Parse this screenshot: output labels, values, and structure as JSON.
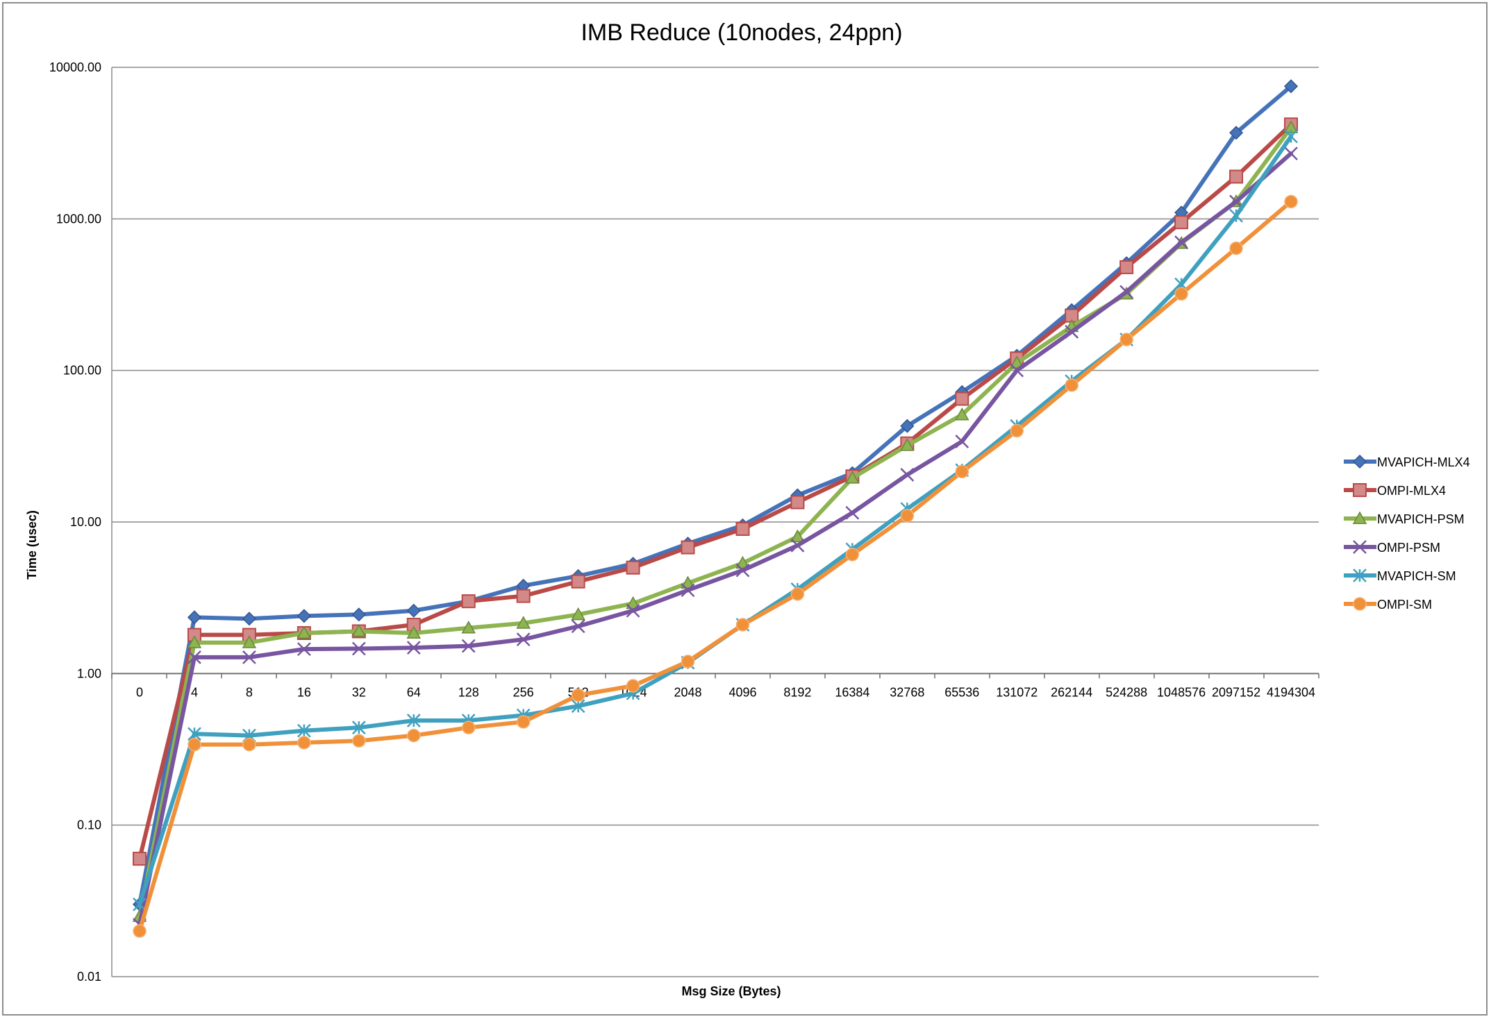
{
  "chart_data": {
    "type": "line",
    "title": "IMB Reduce (10nodes, 24ppn)",
    "xlabel": "Msg Size (Bytes)",
    "ylabel": "Time (usec)",
    "y_scale": "log",
    "ylim": [
      0.01,
      10000
    ],
    "y_ticks": [
      "0.01",
      "0.10",
      "1.00",
      "10.00",
      "100.00",
      "1000.00",
      "10000.00"
    ],
    "grid": true,
    "legend_position": "right",
    "categories": [
      "0",
      "4",
      "8",
      "16",
      "32",
      "64",
      "128",
      "256",
      "512",
      "1024",
      "2048",
      "4096",
      "8192",
      "16384",
      "32768",
      "65536",
      "131072",
      "262144",
      "524288",
      "1048576",
      "2097152",
      "4194304"
    ],
    "series": [
      {
        "name": "MVAPICH-MLX4",
        "color": "#4573BA",
        "marker": "diamond",
        "values": [
          0.03,
          2.35,
          2.3,
          2.4,
          2.45,
          2.6,
          3.0,
          3.8,
          4.4,
          5.3,
          7.2,
          9.5,
          15,
          21,
          43,
          72,
          125,
          250,
          510,
          1100,
          3700,
          7500
        ]
      },
      {
        "name": "OMPI-MLX4",
        "color": "#B94A48",
        "marker": "square",
        "values": [
          0.06,
          1.8,
          1.8,
          1.85,
          1.9,
          2.1,
          3.0,
          3.25,
          4.05,
          5.0,
          6.8,
          9.0,
          13.5,
          20,
          33,
          65,
          120,
          230,
          480,
          950,
          1900,
          4200
        ]
      },
      {
        "name": "MVAPICH-PSM",
        "color": "#8DB450",
        "marker": "triangle",
        "values": [
          0.025,
          1.6,
          1.6,
          1.85,
          1.9,
          1.85,
          2.0,
          2.15,
          2.45,
          2.9,
          3.95,
          5.35,
          8.0,
          19.5,
          32,
          51,
          112,
          195,
          320,
          690,
          1300,
          4000
        ]
      },
      {
        "name": "OMPI-PSM",
        "color": "#7755A0",
        "marker": "x",
        "values": [
          0.022,
          1.28,
          1.28,
          1.45,
          1.46,
          1.48,
          1.52,
          1.68,
          2.05,
          2.6,
          3.55,
          4.8,
          7.0,
          11.5,
          20.5,
          34,
          100,
          180,
          330,
          700,
          1300,
          2700
        ]
      },
      {
        "name": "MVAPICH-SM",
        "color": "#3FA0BF",
        "marker": "star",
        "values": [
          0.03,
          0.4,
          0.39,
          0.42,
          0.44,
          0.49,
          0.49,
          0.53,
          0.61,
          0.74,
          1.18,
          2.1,
          3.6,
          6.6,
          12.2,
          22,
          43,
          85,
          160,
          370,
          1050,
          3500
        ]
      },
      {
        "name": "OMPI-SM",
        "color": "#F0913A",
        "marker": "circle",
        "values": [
          0.02,
          0.34,
          0.34,
          0.35,
          0.36,
          0.39,
          0.44,
          0.48,
          0.72,
          0.83,
          1.2,
          2.1,
          3.35,
          6.1,
          11,
          21.5,
          40,
          80,
          160,
          320,
          640,
          1300
        ]
      }
    ]
  }
}
